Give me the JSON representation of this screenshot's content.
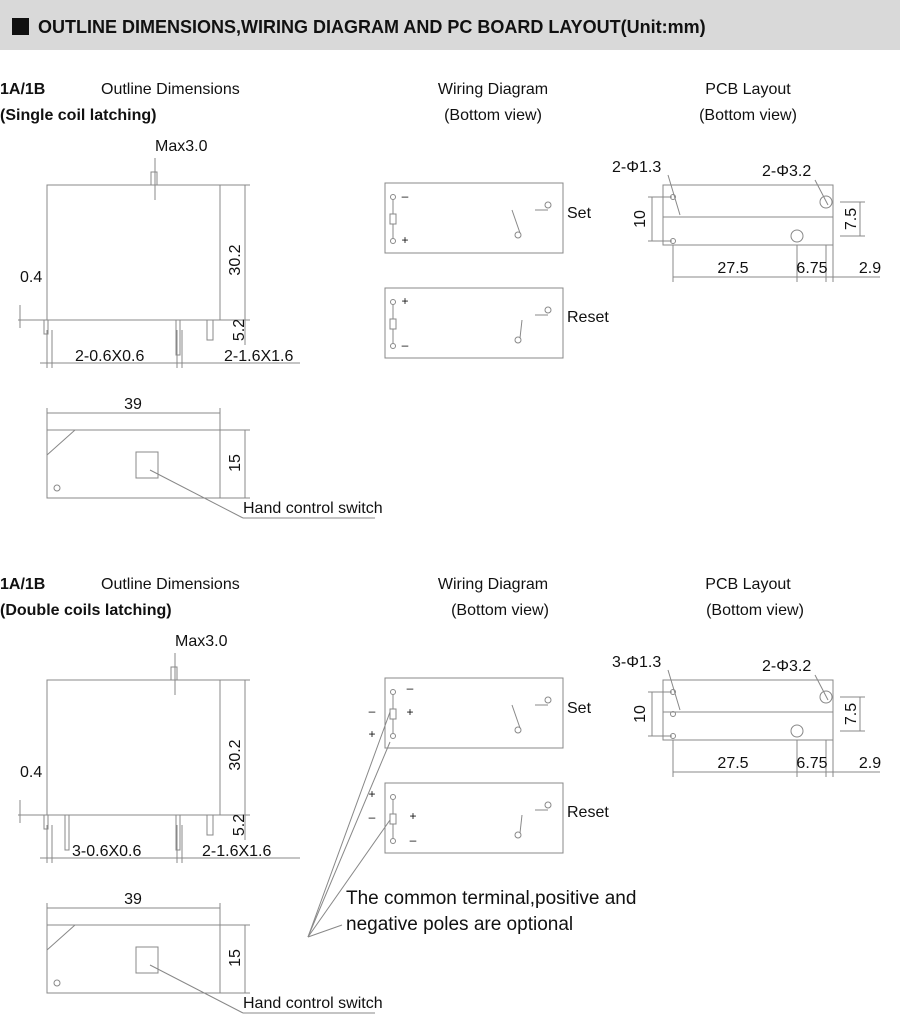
{
  "header": {
    "title": "OUTLINE DIMENSIONS,WIRING DIAGRAM AND PC BOARD LAYOUT(Unit:mm)"
  },
  "sections": [
    {
      "model": "1A/1B",
      "variant": "(Single coil latching)",
      "outline_title": "Outline Dimensions",
      "wiring_title": "Wiring Diagram",
      "wiring_subtitle": "(Bottom view)",
      "pcb_title": "PCB Layout",
      "pcb_subtitle": "(Bottom view)",
      "outline": {
        "max_height": "Max3.0",
        "pin_thickness": "0.4",
        "height": "30.2",
        "pin_length": "5.2",
        "signal_pins": "2-0.6X0.6",
        "load_pins": "2-1.6X1.6",
        "length": "39",
        "width": "15",
        "switch": "Hand control switch"
      },
      "wiring": {
        "set": "Set",
        "reset": "Reset",
        "set_signs": [
          "–",
          "+"
        ],
        "reset_signs": [
          "+",
          "–"
        ]
      },
      "pcb": {
        "small_holes": "2-Φ1.3",
        "large_holes": "2-Φ3.2",
        "pitch_small": "10",
        "pitch_large": "7.5",
        "span": "27.5",
        "offset": "6.75",
        "edge": "2.9"
      }
    },
    {
      "model": "1A/1B",
      "variant": "(Double coils latching)",
      "outline_title": "Outline Dimensions",
      "wiring_title": "Wiring Diagram",
      "wiring_subtitle": "(Bottom view)",
      "pcb_title": "PCB Layout",
      "pcb_subtitle": "(Bottom view)",
      "outline": {
        "max_height": "Max3.0",
        "pin_thickness": "0.4",
        "height": "30.2",
        "pin_length": "5.2",
        "signal_pins": "3-0.6X0.6",
        "load_pins": "2-1.6X1.6",
        "length": "39",
        "width": "15",
        "switch": "Hand control switch"
      },
      "wiring": {
        "set": "Set",
        "reset": "Reset",
        "set_signs": [
          "–",
          "–",
          "+",
          "+"
        ],
        "reset_signs": [
          "+",
          "–",
          "+",
          "–"
        ]
      },
      "pcb": {
        "small_holes": "3-Φ1.3",
        "large_holes": "2-Φ3.2",
        "pitch_small": "10",
        "pitch_large": "7.5",
        "span": "27.5",
        "offset": "6.75",
        "edge": "2.9"
      }
    }
  ],
  "note": {
    "lines": [
      "The common terminal,positive and",
      "negative poles are optional"
    ]
  }
}
